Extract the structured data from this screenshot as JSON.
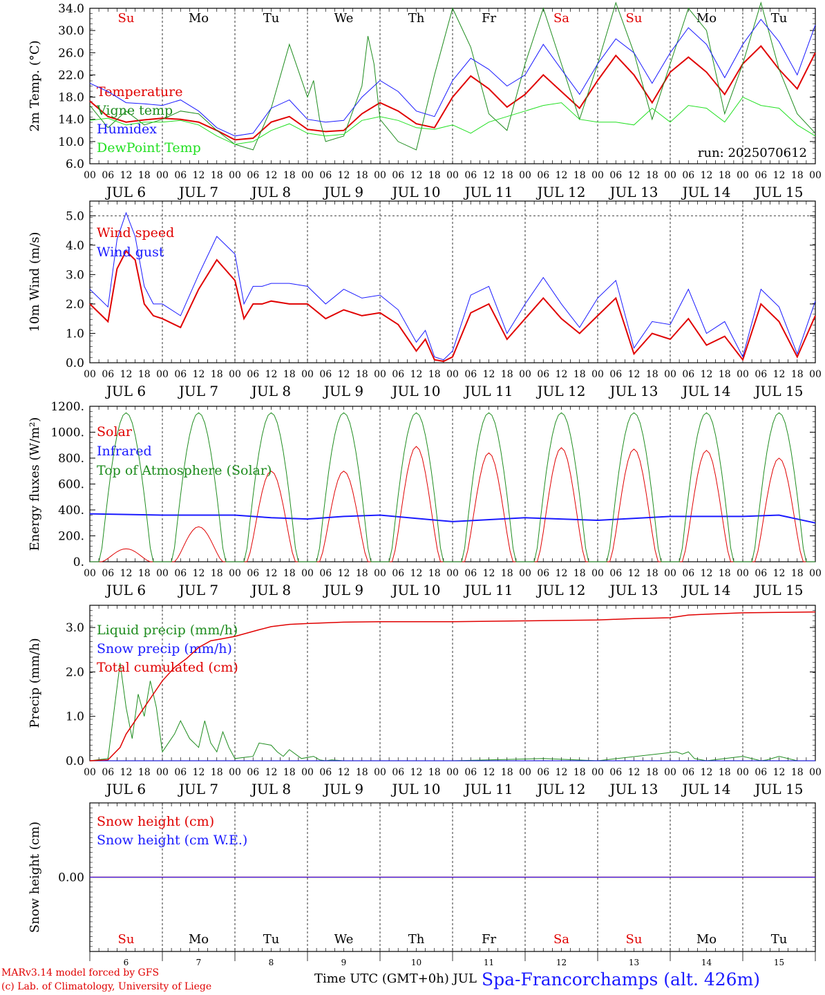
{
  "run_label": "run: 2025070612",
  "hour_ticks": [
    "00",
    "06",
    "12",
    "18"
  ],
  "end_tick": "00",
  "day_dates": [
    "JUL  6",
    "JUL  7",
    "JUL  8",
    "JUL  9",
    "JUL 10",
    "JUL 11",
    "JUL 12",
    "JUL 13",
    "JUL 14",
    "JUL 15"
  ],
  "weekdays": [
    "Su",
    "Mo",
    "Tu",
    "We",
    "Th",
    "Fr",
    "Sa",
    "Su",
    "Mo",
    "Tu"
  ],
  "weekday_colors": [
    "#e00000",
    "#000000",
    "#000000",
    "#000000",
    "#000000",
    "#000000",
    "#e00000",
    "#e00000",
    "#000000",
    "#000000"
  ],
  "day_numbers": [
    "6",
    "7",
    "8",
    "9",
    "10",
    "11",
    "12",
    "13",
    "14",
    "15"
  ],
  "footer": {
    "model": "MARv3.14 model forced by GFS",
    "copyright": "(c) Lab. of Climatology, University of Liege",
    "time_axis": "Time UTC (GMT+0h) JUL",
    "station": "Spa-Francorchamps (alt. 426m)"
  },
  "chart_data": [
    {
      "type": "line",
      "ylabel": "2m Temp. (°C)",
      "ylim": [
        6,
        34
      ],
      "yticks": [
        "6.0",
        "10.0",
        "14.0",
        "18.0",
        "22.0",
        "26.0",
        "30.0",
        "34.0"
      ],
      "yticks_values": [
        6,
        10,
        14,
        18,
        22,
        26,
        30,
        34
      ],
      "x_unit": "hours since JUL 6 00 UTC",
      "series": [
        {
          "name": "Temperature",
          "color": "#e00000",
          "width": 2,
          "x": [
            0,
            6,
            12,
            18,
            24,
            30,
            36,
            42,
            48,
            54,
            60,
            66,
            72,
            78,
            84,
            90,
            96,
            102,
            108,
            114,
            120,
            126,
            132,
            138,
            144,
            150,
            156,
            162,
            168,
            174,
            180,
            186,
            192,
            198,
            204,
            210,
            216,
            222,
            228,
            234,
            240
          ],
          "y": [
            17.3,
            14.5,
            13.5,
            13.9,
            14.2,
            14.0,
            13.5,
            12.0,
            10.3,
            10.6,
            13.5,
            14.5,
            12.2,
            11.8,
            12.0,
            15.0,
            17.0,
            15.5,
            13.2,
            12.5,
            18.0,
            21.8,
            19.5,
            16.2,
            18.5,
            22.0,
            19.0,
            16.0,
            21.0,
            25.5,
            22.0,
            17.0,
            22.5,
            25.2,
            22.5,
            18.5,
            24.0,
            27.2,
            23.0,
            19.5,
            26.0
          ]
        },
        {
          "name": "Vigne temp",
          "color": "#1e8c1e",
          "width": 1,
          "x": [
            0,
            6,
            12,
            18,
            24,
            30,
            36,
            42,
            48,
            54,
            60,
            66,
            72,
            74,
            76,
            78,
            84,
            90,
            92,
            94,
            96,
            102,
            108,
            114,
            120,
            126,
            132,
            138,
            144,
            150,
            156,
            162,
            168,
            174,
            180,
            186,
            192,
            198,
            204,
            210,
            216,
            222,
            228,
            234,
            240
          ],
          "y": [
            16.5,
            12.5,
            15.5,
            13.0,
            14.0,
            15.5,
            15.0,
            12.0,
            9.5,
            8.5,
            16.0,
            27.5,
            18.0,
            21.0,
            14.0,
            10.0,
            11.0,
            20.0,
            29.0,
            24.0,
            14.0,
            10.0,
            8.5,
            22.0,
            34.0,
            27.0,
            15.0,
            12.0,
            24.0,
            34.0,
            24.0,
            14.0,
            24.0,
            35.0,
            26.0,
            14.0,
            24.0,
            34.0,
            30.0,
            15.0,
            24.0,
            35.0,
            23.0,
            15.0,
            11.5
          ]
        },
        {
          "name": "Humidex",
          "color": "#1a1aff",
          "width": 1,
          "x": [
            0,
            6,
            12,
            18,
            24,
            30,
            36,
            42,
            48,
            54,
            60,
            66,
            72,
            78,
            84,
            90,
            96,
            102,
            108,
            114,
            120,
            126,
            132,
            138,
            144,
            150,
            156,
            162,
            168,
            174,
            180,
            186,
            192,
            198,
            204,
            210,
            216,
            222,
            228,
            234,
            240
          ],
          "y": [
            20.5,
            19.0,
            17.0,
            16.8,
            16.5,
            17.5,
            15.5,
            12.5,
            11.0,
            11.5,
            16.0,
            17.5,
            14.0,
            13.5,
            13.8,
            18.0,
            21.0,
            19.0,
            15.5,
            14.5,
            21.0,
            25.0,
            23.0,
            20.0,
            22.0,
            27.5,
            23.0,
            18.5,
            24.0,
            28.5,
            26.0,
            20.5,
            26.0,
            30.5,
            27.5,
            21.5,
            27.5,
            32.0,
            28.0,
            22.0,
            31.0
          ]
        },
        {
          "name": "DewPoint Temp",
          "color": "#22e022",
          "width": 1,
          "x": [
            0,
            6,
            12,
            18,
            24,
            30,
            36,
            42,
            48,
            54,
            60,
            66,
            72,
            78,
            84,
            90,
            96,
            102,
            108,
            114,
            120,
            126,
            132,
            138,
            144,
            150,
            156,
            162,
            168,
            174,
            180,
            186,
            192,
            198,
            204,
            210,
            216,
            222,
            228,
            234,
            240
          ],
          "y": [
            13.8,
            14.2,
            13.0,
            13.5,
            13.5,
            13.8,
            13.0,
            11.0,
            9.5,
            10.0,
            12.0,
            13.2,
            11.5,
            11.0,
            11.3,
            13.8,
            14.5,
            13.8,
            12.5,
            12.2,
            13.0,
            11.5,
            13.5,
            14.5,
            15.5,
            16.5,
            17.0,
            14.0,
            13.5,
            13.5,
            13.0,
            16.0,
            13.5,
            16.5,
            16.0,
            13.5,
            18.0,
            16.5,
            16.0,
            13.0,
            11.0
          ]
        }
      ]
    },
    {
      "type": "line",
      "ylabel": "10m Wind (m/s)",
      "ylim": [
        0,
        5.5
      ],
      "yticks": [
        "0.0",
        "1.0",
        "2.0",
        "3.0",
        "4.0",
        "5.0"
      ],
      "yticks_values": [
        0,
        1,
        2,
        3,
        4,
        5
      ],
      "x_unit": "hours since JUL 6 00 UTC",
      "series": [
        {
          "name": "Wind speed",
          "color": "#e00000",
          "width": 2,
          "x": [
            0,
            6,
            9,
            12,
            15,
            18,
            21,
            24,
            30,
            36,
            42,
            48,
            51,
            54,
            57,
            60,
            66,
            72,
            78,
            84,
            90,
            96,
            102,
            108,
            111,
            114,
            117,
            120,
            126,
            132,
            138,
            144,
            150,
            156,
            162,
            168,
            174,
            180,
            186,
            192,
            198,
            204,
            210,
            216,
            222,
            228,
            234,
            240
          ],
          "y": [
            2.0,
            1.4,
            3.2,
            3.8,
            3.5,
            2.0,
            1.6,
            1.5,
            1.2,
            2.5,
            3.5,
            2.8,
            1.5,
            2.0,
            2.0,
            2.1,
            2.0,
            2.0,
            1.5,
            1.8,
            1.6,
            1.7,
            1.3,
            0.4,
            0.8,
            0.1,
            0.05,
            0.2,
            1.7,
            2.0,
            0.8,
            1.5,
            2.2,
            1.5,
            1.0,
            1.6,
            2.2,
            0.3,
            1.0,
            0.8,
            1.5,
            0.6,
            0.9,
            0.1,
            2.0,
            1.4,
            0.2,
            1.6
          ]
        },
        {
          "name": "Wind gust",
          "color": "#1a1aff",
          "width": 1,
          "x": [
            0,
            6,
            9,
            12,
            15,
            18,
            21,
            24,
            30,
            36,
            42,
            48,
            51,
            54,
            57,
            60,
            66,
            72,
            78,
            84,
            90,
            96,
            102,
            108,
            111,
            114,
            117,
            120,
            126,
            132,
            138,
            144,
            150,
            156,
            162,
            168,
            174,
            180,
            186,
            192,
            198,
            204,
            210,
            216,
            222,
            228,
            234,
            240
          ],
          "y": [
            2.5,
            1.9,
            4.2,
            5.1,
            4.3,
            2.6,
            2.0,
            2.0,
            1.6,
            3.0,
            4.3,
            3.7,
            2.0,
            2.6,
            2.6,
            2.7,
            2.7,
            2.6,
            2.0,
            2.5,
            2.2,
            2.3,
            1.8,
            0.7,
            1.1,
            0.2,
            0.1,
            0.4,
            2.3,
            2.6,
            1.0,
            2.0,
            2.9,
            2.0,
            1.2,
            2.2,
            2.8,
            0.5,
            1.4,
            1.3,
            2.5,
            1.0,
            1.4,
            0.2,
            2.5,
            1.9,
            0.3,
            2.1
          ]
        }
      ]
    },
    {
      "type": "line",
      "ylabel": "Energy fluxes (W/m²)",
      "ylim": [
        0,
        1200
      ],
      "yticks": [
        "0.",
        "200.",
        "400.",
        "600.",
        "800.",
        "1000.",
        "1200."
      ],
      "yticks_values": [
        0,
        200,
        400,
        600,
        800,
        1000,
        1200
      ],
      "x_unit": "hours since JUL 6 00 UTC",
      "toa_peak": 1150,
      "solar_peaks": [
        100,
        270,
        700,
        700,
        890,
        840,
        880,
        870,
        860,
        800
      ],
      "series": [
        {
          "name": "Solar",
          "color": "#e00000",
          "width": 1
        },
        {
          "name": "Infrared",
          "color": "#1a1aff",
          "width": 2,
          "x": [
            0,
            24,
            48,
            60,
            72,
            84,
            96,
            120,
            144,
            168,
            192,
            216,
            228,
            240
          ],
          "y": [
            370,
            360,
            360,
            340,
            330,
            350,
            360,
            310,
            340,
            320,
            350,
            350,
            360,
            300
          ]
        },
        {
          "name": "Top of Atmosphere (Solar)",
          "color": "#1e8c1e",
          "width": 1
        }
      ]
    },
    {
      "type": "line",
      "ylabel": "Precip (mm/h)",
      "ylim": [
        0,
        3.5
      ],
      "yticks": [
        "0.0",
        "1.0",
        "2.0",
        "3.0"
      ],
      "yticks_values": [
        0,
        1,
        2,
        3
      ],
      "x_unit": "hours since JUL 6 00 UTC",
      "series": [
        {
          "name": "Liquid precip (mm/h)",
          "color": "#1e8c1e",
          "width": 1,
          "x": [
            0,
            6,
            10,
            12,
            14,
            16,
            18,
            20,
            22,
            24,
            25,
            28,
            30,
            33,
            36,
            38,
            40,
            42,
            44,
            46,
            48,
            54,
            56,
            60,
            62,
            64,
            66,
            70,
            74,
            76,
            78,
            80,
            84,
            96,
            108,
            120,
            150,
            168,
            194,
            196,
            198,
            200,
            204,
            216,
            222,
            224,
            228,
            234,
            240
          ],
          "y": [
            0,
            0.05,
            2.2,
            1.2,
            0.5,
            1.5,
            1.0,
            1.8,
            1.2,
            0.2,
            0.3,
            0.6,
            0.9,
            0.5,
            0.3,
            0.9,
            0.4,
            0.2,
            0.65,
            0.3,
            0.05,
            0.1,
            0.4,
            0.35,
            0.2,
            0.1,
            0.25,
            0.05,
            0.1,
            0.02,
            0,
            0.02,
            0,
            0,
            0,
            0,
            0.05,
            0,
            0.2,
            0.15,
            0.2,
            0.05,
            0,
            0.1,
            0,
            0.02,
            0.1,
            0,
            0
          ]
        },
        {
          "name": "Snow precip (mm/h)",
          "color": "#1a1aff",
          "width": 1,
          "x": [
            0,
            240
          ],
          "y": [
            0,
            0
          ]
        },
        {
          "name": "Total cumulated (cm)",
          "color": "#e00000",
          "width": 1.5,
          "x": [
            0,
            6,
            10,
            12,
            16,
            20,
            24,
            28,
            32,
            36,
            40,
            44,
            48,
            56,
            60,
            66,
            72,
            84,
            96,
            120,
            144,
            168,
            180,
            192,
            198,
            204,
            216,
            228,
            240
          ],
          "y": [
            0,
            0.02,
            0.3,
            0.6,
            1.0,
            1.4,
            1.8,
            2.1,
            2.3,
            2.55,
            2.7,
            2.75,
            2.8,
            2.95,
            3.02,
            3.07,
            3.09,
            3.12,
            3.13,
            3.13,
            3.15,
            3.17,
            3.2,
            3.22,
            3.28,
            3.3,
            3.33,
            3.34,
            3.35
          ]
        }
      ]
    },
    {
      "type": "line",
      "ylabel": "Snow height (cm)",
      "ylim": [
        -1,
        1
      ],
      "yticks": [
        "0.00"
      ],
      "yticks_values": [
        0
      ],
      "x_unit": "hours since JUL 6 00 UTC",
      "series": [
        {
          "name": "Snow height (cm)",
          "color": "#e00000",
          "width": 1.5,
          "x": [
            0,
            240
          ],
          "y": [
            0,
            0
          ]
        },
        {
          "name": "Snow height (cm W.E.)",
          "color": "#1a1aff",
          "width": 1,
          "x": [
            0,
            240
          ],
          "y": [
            0,
            0
          ]
        }
      ]
    }
  ]
}
